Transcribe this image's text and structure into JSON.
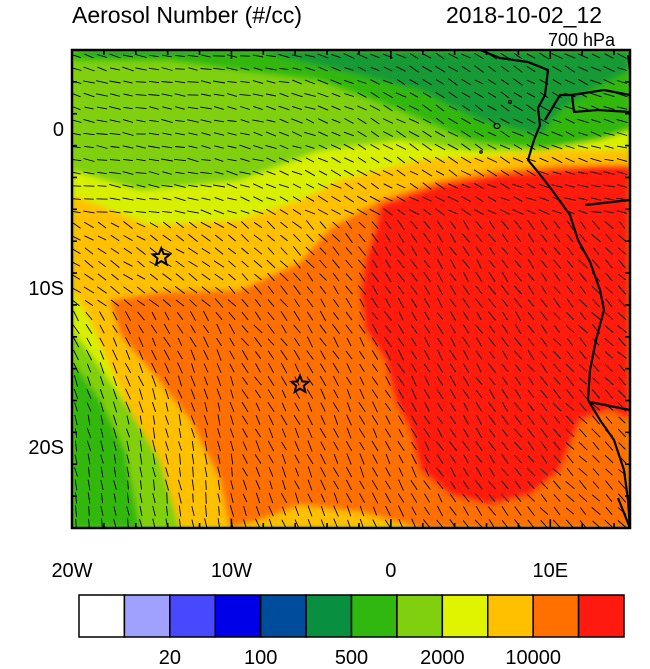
{
  "header": {
    "title": "Aerosol Number (#/cc)",
    "datetime": "2018-10-02_12",
    "level": "700 hPa"
  },
  "map": {
    "lon_range": [
      -20,
      15
    ],
    "lat_range": [
      -25,
      5
    ],
    "x_ticks": [
      {
        "lon": -20,
        "label": "20W"
      },
      {
        "lon": -10,
        "label": "10W"
      },
      {
        "lon": 0,
        "label": "0"
      },
      {
        "lon": 10,
        "label": "10E"
      }
    ],
    "y_ticks": [
      {
        "lat": 0,
        "label": "0"
      },
      {
        "lat": -10,
        "label": "10S"
      },
      {
        "lat": -20,
        "label": "20S"
      }
    ],
    "markers": [
      {
        "name": "site-ascension",
        "lon": -14.4,
        "lat": -8.0
      },
      {
        "name": "site-st-helena",
        "lon": -5.7,
        "lat": -16.0
      }
    ],
    "field_colors": {
      "background_green": "#80d010",
      "dark_green": "#109040",
      "mid_green": "#30b810",
      "light_green": "#80d010",
      "yellow_green": "#d8f000",
      "yellow": "#f0f000",
      "gold": "#ffc000",
      "orange": "#ff7000",
      "red": "#ff1a10"
    }
  },
  "colorbar": {
    "colors": [
      "#ffffff",
      "#a0a0ff",
      "#4848ff",
      "#0000e8",
      "#004c9c",
      "#089040",
      "#30b810",
      "#80d010",
      "#e0f400",
      "#ffc000",
      "#ff7000",
      "#ff1a10"
    ],
    "labels": [
      {
        "after_index": 1,
        "text": "20"
      },
      {
        "after_index": 3,
        "text": "100"
      },
      {
        "after_index": 5,
        "text": "500"
      },
      {
        "after_index": 7,
        "text": "2000"
      },
      {
        "after_index": 9,
        "text": "10000"
      }
    ]
  }
}
